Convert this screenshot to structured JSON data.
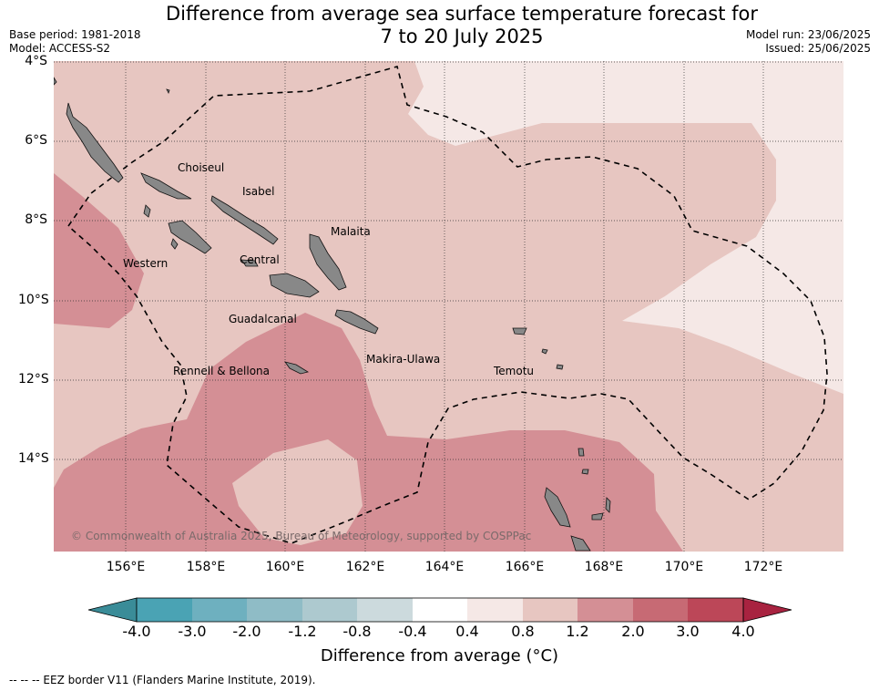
{
  "title_line1": "Difference from average sea surface temperature forecast for",
  "title_line2": "7 to 20 July 2025",
  "meta_left": {
    "base_period": "Base period: 1981-2018",
    "model": "Model: ACCESS-S2"
  },
  "meta_right": {
    "model_run": "Model run: 23/06/2025",
    "issued": "Issued: 25/06/2025"
  },
  "lat_labels": [
    "4°S",
    "6°S",
    "8°S",
    "10°S",
    "12°S",
    "14°S"
  ],
  "lon_labels": [
    "156°E",
    "158°E",
    "160°E",
    "162°E",
    "164°E",
    "166°E",
    "168°E",
    "170°E",
    "172°E"
  ],
  "provinces": [
    {
      "name": "Choiseul"
    },
    {
      "name": "Isabel"
    },
    {
      "name": "Malaita"
    },
    {
      "name": "Western"
    },
    {
      "name": "Central"
    },
    {
      "name": "Guadalcanal"
    },
    {
      "name": "Makira-Ulawa"
    },
    {
      "name": "Temotu"
    },
    {
      "name": "Rennell & Bellona"
    }
  ],
  "copyright": "© Commonwealth of Australia 2025, Bureau of Meteorology, supported by COSPPac",
  "colorbar": {
    "ticks": [
      "-4.0",
      "-3.0",
      "-2.0",
      "-1.2",
      "-0.8",
      "-0.4",
      "0.4",
      "0.8",
      "1.2",
      "2.0",
      "3.0",
      "4.0"
    ],
    "colors": [
      "#3a8c98",
      "#4aa3b4",
      "#6eb0bf",
      "#8fbcc6",
      "#adc9cf",
      "#ccdadd",
      "#ffffff",
      "#f5e8e6",
      "#e7c6c1",
      "#d48f95",
      "#c76a74",
      "#bc4758",
      "#a82340"
    ],
    "label": "Difference from average ($^\\circ$C)",
    "label_display": "Difference from average (°C)"
  },
  "legend_eez": "--  --  -- EEZ border V11 (Flanders Marine Institute, 2019).",
  "colors": {
    "land": "#888888",
    "grid": "#333333",
    "eez": "#000000"
  }
}
